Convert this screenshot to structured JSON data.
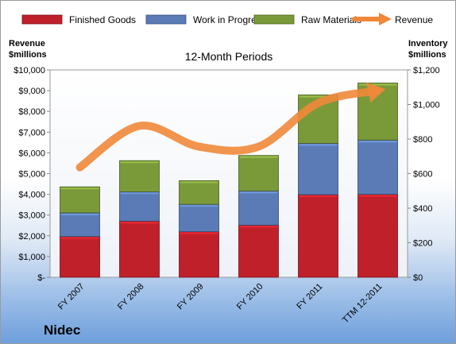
{
  "chart_data": {
    "type": "bar",
    "stacked": true,
    "subtitle": "12-Month Periods",
    "company": "Nidec",
    "categories": [
      "FY 2007",
      "FY 2008",
      "FY 2009",
      "FY 2010",
      "FY 2011",
      "TTM 12-2011"
    ],
    "y_left": {
      "label_line1": "Revenue",
      "label_line2": "$millions",
      "ylim": [
        0,
        10000
      ],
      "ticks": [
        0,
        1000,
        2000,
        3000,
        4000,
        5000,
        6000,
        7000,
        8000,
        9000,
        10000
      ],
      "tick_labels": [
        "$-",
        "$1,000",
        "$2,000",
        "$3,000",
        "$4,000",
        "$5,000",
        "$6,000",
        "$7,000",
        "$8,000",
        "$9,000",
        "$10,000"
      ]
    },
    "y_right": {
      "label_line1": "Inventory",
      "label_line2": "$millions",
      "ylim": [
        0,
        1200
      ],
      "ticks": [
        0,
        200,
        400,
        600,
        800,
        1000,
        1200
      ],
      "tick_labels": [
        "$0",
        "$200",
        "$400",
        "$600",
        "$800",
        "$1,000",
        "$1,200"
      ]
    },
    "series": [
      {
        "name": "Finished Goods",
        "axis": "right",
        "color": "#c0202a",
        "values": [
          236,
          325,
          264,
          302,
          478,
          480
        ]
      },
      {
        "name": "Work in Progress",
        "axis": "right",
        "color": "#5a7bb5",
        "values": [
          137,
          170,
          158,
          198,
          297,
          314
        ]
      },
      {
        "name": "Raw Materials",
        "axis": "right",
        "color": "#7a9a3a",
        "values": [
          150,
          180,
          137,
          205,
          280,
          330
        ]
      },
      {
        "name": "Revenue",
        "axis": "left",
        "type": "line",
        "color": "#f0883a",
        "values": [
          5300,
          7300,
          6300,
          6300,
          8400,
          9000
        ]
      }
    ],
    "legend_position": "top",
    "grid": false
  }
}
